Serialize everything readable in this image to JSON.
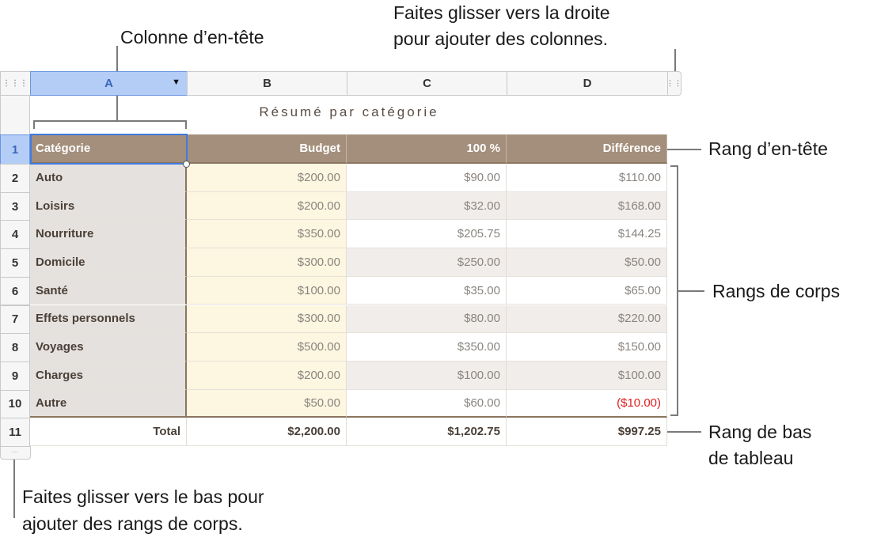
{
  "annotations": {
    "header_column": "Colonne d’en-tête",
    "add_columns_line1": "Faites glisser vers la droite",
    "add_columns_line2": "pour ajouter des colonnes.",
    "header_row": "Rang d’en-tête",
    "body_rows": "Rangs de corps",
    "footer_row_line1": "Rang de bas",
    "footer_row_line2": "de tableau",
    "add_rows_line1": "Faites glisser vers le bas pour",
    "add_rows_line2": "ajouter des rangs de corps."
  },
  "table": {
    "title": "Résumé par catégorie",
    "column_letters": [
      "A",
      "B",
      "C",
      "D"
    ],
    "selected_column": "A",
    "row_numbers": [
      "1",
      "2",
      "3",
      "4",
      "5",
      "6",
      "7",
      "8",
      "9",
      "10",
      "11"
    ],
    "headers": [
      "Catégorie",
      "Budget",
      "100 %",
      "Différence"
    ],
    "rows": [
      [
        "Auto",
        "$200.00",
        "$90.00",
        "$110.00"
      ],
      [
        "Loisirs",
        "$200.00",
        "$32.00",
        "$168.00"
      ],
      [
        "Nourriture",
        "$350.00",
        "$205.75",
        "$144.25"
      ],
      [
        "Domicile",
        "$300.00",
        "$250.00",
        "$50.00"
      ],
      [
        "Santé",
        "$100.00",
        "$35.00",
        "$65.00"
      ],
      [
        "Effets personnels",
        "$300.00",
        "$80.00",
        "$220.00"
      ],
      [
        "Voyages",
        "$500.00",
        "$350.00",
        "$150.00"
      ],
      [
        "Charges",
        "$200.00",
        "$100.00",
        "$100.00"
      ],
      [
        "Autre",
        "$50.00",
        "$60.00",
        "($10.00)"
      ]
    ],
    "footer": [
      "Total",
      "$2,200.00",
      "$1,202.75",
      "$997.25"
    ],
    "colors": {
      "header_bg": "#a38f7b",
      "header_col_bg": "#e5e1de",
      "budget_bg": "#fdf6e0",
      "alt_row_bg": "#f1edea",
      "negative": "#e02020",
      "selection": "#b4cdf7"
    }
  }
}
